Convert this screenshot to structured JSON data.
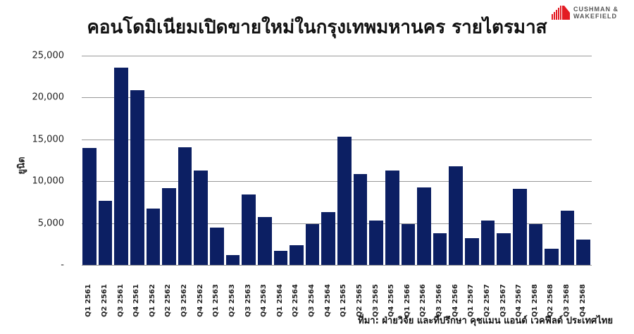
{
  "title": "คอนโดมิเนียมเปิดขายใหม่ในกรุงเทพมหานคร รายไตรมาส",
  "logo": {
    "line1": "CUSHMAN &",
    "line2": "WAKEFIELD",
    "brand_color": "#e31b23"
  },
  "source": "ที่มา: ฝ่ายวิจัย และที่ปรึกษา คุชแมน แอนด์ เวคฟีลด์ ประเทศไทย",
  "bar_color": "#0c1f63",
  "chart_data": {
    "type": "bar",
    "title": "คอนโดมิเนียมเปิดขายใหม่ในกรุงเทพมหานคร รายไตรมาส",
    "xlabel": "",
    "ylabel": "ยูนิต",
    "ylim": [
      0,
      25000
    ],
    "yticks": [
      0,
      5000,
      10000,
      15000,
      20000,
      25000
    ],
    "ytick_labels": [
      "-",
      "5,000",
      "10,000",
      "15,000",
      "20,000",
      "25,000"
    ],
    "grid": true,
    "legend": null,
    "categories": [
      "Q1 2561",
      "Q2 2561",
      "Q3 2561",
      "Q4 2561",
      "Q1 2562",
      "Q2 2562",
      "Q3 2562",
      "Q4 2562",
      "Q1 2563",
      "Q2 2563",
      "Q3 2563",
      "Q4 2563",
      "Q1 2564",
      "Q2 2564",
      "Q3 2564",
      "Q4 2564",
      "Q1 2565",
      "Q2 2565",
      "Q3 2565",
      "Q4 2565",
      "Q1 2566",
      "Q2 2566",
      "Q3 2566",
      "Q4 2566",
      "Q1 2567",
      "Q2 2567",
      "Q3 2567",
      "Q4 2567",
      "Q1 2568",
      "Q2 2568",
      "Q3 2568",
      "Q4 2568"
    ],
    "values": [
      14000,
      7700,
      23600,
      20900,
      6700,
      9200,
      14100,
      11300,
      4500,
      1200,
      8400,
      5700,
      1700,
      2400,
      4900,
      6300,
      15300,
      10900,
      5300,
      11300,
      4900,
      9300,
      3800,
      11800,
      3200,
      5300,
      3800,
      9100,
      4900,
      1900,
      6500,
      3000
    ],
    "source": "ที่มา: ฝ่ายวิจัย และที่ปรึกษา คุชแมน แอนด์ เวคฟีลด์ ประเทศไทย"
  }
}
